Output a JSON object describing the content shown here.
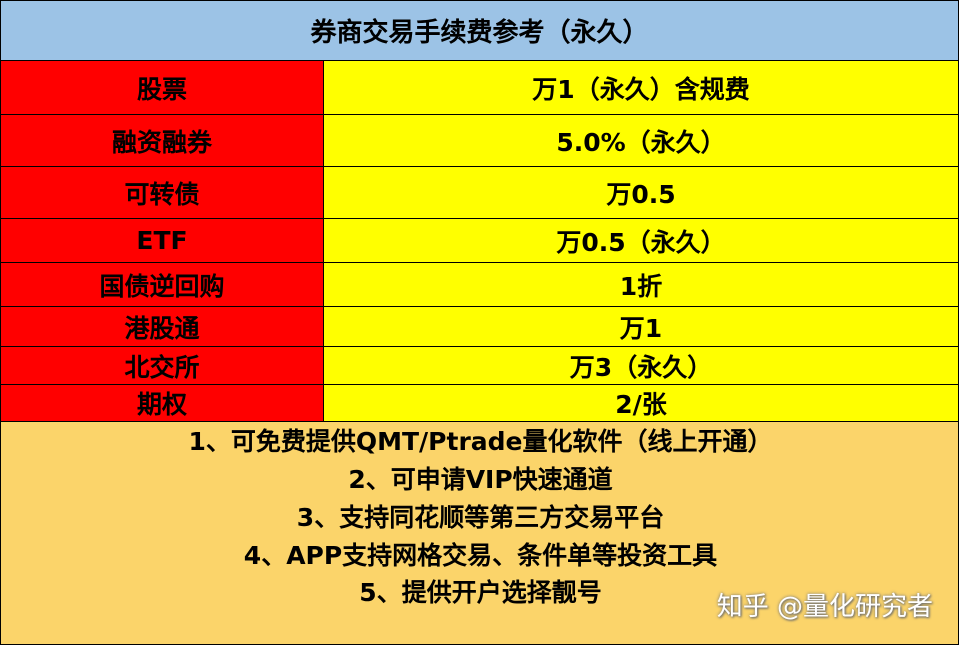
{
  "title": "券商交易手续费参考（永久）",
  "table": {
    "rows": [
      [
        "股票",
        "万1（永久）含规费"
      ],
      [
        "融资融券",
        "5.0%（永久）"
      ],
      [
        "可转债",
        "万0.5"
      ],
      [
        "ETF",
        "万0.5（永久）"
      ],
      [
        "国债逆回购",
        "1折"
      ],
      [
        "港股通",
        "万1"
      ],
      [
        "北交所",
        "万3（永久）"
      ],
      [
        "期权",
        "2/张"
      ]
    ]
  },
  "notes": [
    "1、可免费提供QMT/Ptrade量化软件（线上开通）",
    "2、可申请VIP快速通道",
    "3、支持同花顺等第三方交易平台",
    "4、APP支持网格交易、条件单等投资工具",
    "5、提供开户选择靓号"
  ],
  "watermark": "知乎 @量化研究者"
}
